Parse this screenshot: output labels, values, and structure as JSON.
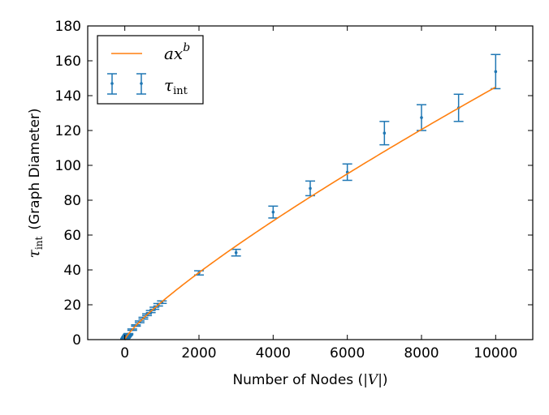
{
  "chart_data": {
    "type": "scatter",
    "title": "",
    "xlabel": "Number of Nodes (|V|)",
    "xlabel_parts": {
      "prefix": "Number of Nodes (",
      "var": "|V|",
      "suffix": ")"
    },
    "ylabel": "τint (Graph Diameter)",
    "ylabel_parts": {
      "symbol": "τ",
      "subscript": "int",
      "rest": "(Graph Diameter)"
    },
    "xlim": [
      -1000,
      11000
    ],
    "ylim": [
      0,
      180
    ],
    "xticks": [
      0,
      2000,
      4000,
      6000,
      8000,
      10000
    ],
    "yticks": [
      0,
      20,
      40,
      60,
      80,
      100,
      120,
      140,
      160,
      180
    ],
    "grid": false,
    "legend_placement": "top-left",
    "colors": {
      "fit": "#ff7f0e",
      "data": "#1f77b4"
    },
    "series": [
      {
        "name": "ax^b",
        "legend_label": {
          "base": "ax",
          "sup": "b"
        },
        "kind": "line",
        "a": 0.0733,
        "b": 0.824,
        "x_range": [
          10,
          10000
        ]
      },
      {
        "name": "τint",
        "legend_label": {
          "symbol": "τ",
          "subscript": "int"
        },
        "kind": "errorbar",
        "x": [
          10,
          20,
          30,
          40,
          50,
          60,
          70,
          80,
          90,
          100,
          200,
          300,
          400,
          500,
          600,
          700,
          800,
          900,
          1000,
          2000,
          3000,
          4000,
          5000,
          6000,
          7000,
          8000,
          9000,
          10000
        ],
        "y": [
          0.5,
          0.9,
          1.2,
          1.5,
          1.8,
          2.1,
          2.4,
          2.7,
          2.9,
          3.2,
          5.7,
          8.1,
          10.2,
          12.3,
          14.3,
          16.1,
          18.0,
          20.0,
          21.5,
          38.3,
          49.9,
          73.2,
          86.8,
          96.1,
          118.5,
          127.4,
          133.0,
          153.8
        ],
        "yerr": [
          0.1,
          0.1,
          0.2,
          0.2,
          0.2,
          0.2,
          0.3,
          0.3,
          0.3,
          0.3,
          0.4,
          0.4,
          0.5,
          0.5,
          0.5,
          0.6,
          0.6,
          0.7,
          0.7,
          1.2,
          1.9,
          3.4,
          4.2,
          4.7,
          6.7,
          7.4,
          7.8,
          9.8
        ]
      }
    ]
  }
}
